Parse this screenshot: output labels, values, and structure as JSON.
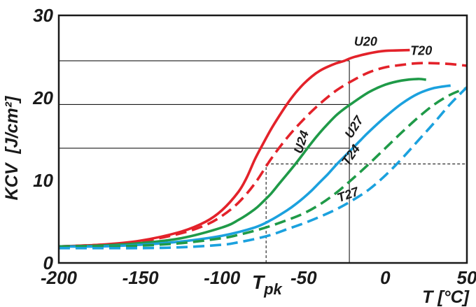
{
  "chart_data": {
    "type": "line",
    "xlabel": "T [°C]",
    "ylabel": "KCV  [J/cm²]",
    "xlim": [
      -200,
      50
    ],
    "ylim": [
      0,
      30
    ],
    "xticks": [
      {
        "value": -200,
        "label": "-200"
      },
      {
        "value": -150,
        "label": "-150"
      },
      {
        "value": -100,
        "label": "-100"
      },
      {
        "value": -50,
        "label": "-50"
      },
      {
        "value": 0,
        "label": "0"
      },
      {
        "value": 50,
        "label": "50"
      }
    ],
    "yticks": [
      {
        "value": 0,
        "label": "0"
      },
      {
        "value": 10,
        "label": "10"
      },
      {
        "value": 20,
        "label": "20"
      },
      {
        "value": 30,
        "label": "30"
      }
    ],
    "grid": false,
    "legend": "none",
    "series": [
      {
        "name": "U20",
        "color": "#e3222a",
        "dash": false,
        "x": [
          -200,
          -175,
          -150,
          -125,
          -110,
          -100,
          -90,
          -85,
          -80,
          -75,
          -70,
          -65,
          -60,
          -55,
          -50,
          -45,
          -40,
          -35,
          -30,
          -25,
          -20,
          -10,
          0,
          15
        ],
        "y": [
          2.0,
          2.2,
          2.7,
          3.8,
          5.0,
          6.4,
          8.6,
          10.3,
          12.5,
          14.4,
          16.2,
          17.8,
          19.3,
          20.6,
          21.7,
          22.6,
          23.3,
          23.8,
          24.2,
          24.5,
          24.9,
          25.4,
          25.7,
          25.8
        ]
      },
      {
        "name": "T20",
        "color": "#e3222a",
        "dash": true,
        "x": [
          -200,
          -175,
          -150,
          -125,
          -110,
          -100,
          -90,
          -80,
          -70,
          -60,
          -50,
          -40,
          -30,
          -20,
          -10,
          0,
          10,
          20,
          30,
          40,
          50
        ],
        "y": [
          2.0,
          2.2,
          2.6,
          3.6,
          4.6,
          5.7,
          7.3,
          9.6,
          12.6,
          15.2,
          17.4,
          19.3,
          20.9,
          22.1,
          23.1,
          23.7,
          24.0,
          24.2,
          24.2,
          24.1,
          23.9
        ]
      },
      {
        "name": "U24",
        "color": "#1f9a48",
        "dash": false,
        "x": [
          -200,
          -175,
          -150,
          -125,
          -100,
          -90,
          -80,
          -75,
          -70,
          -65,
          -60,
          -55,
          -50,
          -45,
          -40,
          -35,
          -30,
          -25,
          -20,
          -10,
          0,
          10,
          20,
          25
        ],
        "y": [
          2.0,
          2.1,
          2.4,
          3.0,
          4.3,
          5.2,
          6.5,
          7.4,
          8.4,
          9.6,
          10.8,
          12.0,
          13.3,
          14.6,
          15.8,
          16.9,
          17.9,
          18.7,
          19.4,
          20.7,
          21.6,
          22.1,
          22.3,
          22.2
        ]
      },
      {
        "name": "U27",
        "color": "#1ba1de",
        "dash": false,
        "x": [
          -200,
          -175,
          -150,
          -125,
          -100,
          -80,
          -70,
          -60,
          -55,
          -50,
          -45,
          -40,
          -35,
          -30,
          -25,
          -20,
          -15,
          -10,
          0,
          10,
          20,
          30,
          40
        ],
        "y": [
          2.0,
          2.0,
          2.2,
          2.6,
          3.3,
          4.3,
          5.2,
          6.4,
          7.1,
          7.9,
          8.8,
          9.8,
          10.8,
          11.9,
          12.9,
          13.9,
          14.9,
          15.9,
          17.7,
          19.3,
          20.5,
          21.2,
          21.5
        ]
      },
      {
        "name": "T24",
        "color": "#1f9a48",
        "dash": true,
        "x": [
          -200,
          -175,
          -150,
          -125,
          -100,
          -90,
          -80,
          -70,
          -60,
          -50,
          -40,
          -30,
          -20,
          -10,
          0,
          10,
          20,
          30,
          40,
          50
        ],
        "y": [
          2.0,
          2.0,
          2.1,
          2.4,
          3.0,
          3.4,
          3.9,
          4.5,
          5.2,
          6.0,
          7.1,
          8.5,
          10.2,
          12.0,
          13.9,
          15.8,
          17.6,
          19.2,
          20.4,
          21.2
        ]
      },
      {
        "name": "T27",
        "color": "#1ba1de",
        "dash": true,
        "x": [
          -200,
          -175,
          -150,
          -125,
          -100,
          -90,
          -80,
          -70,
          -60,
          -50,
          -40,
          -30,
          -20,
          -10,
          0,
          10,
          20,
          30,
          40,
          50
        ],
        "y": [
          1.8,
          1.8,
          1.8,
          1.9,
          2.2,
          2.5,
          2.9,
          3.4,
          4.1,
          4.8,
          5.6,
          6.5,
          7.6,
          8.9,
          10.6,
          12.6,
          14.8,
          17.0,
          19.3,
          21.3
        ]
      }
    ],
    "reference_lines": [
      {
        "type": "h",
        "y": 24.5,
        "x_from": -200,
        "x_to": -22,
        "style": "solid"
      },
      {
        "type": "h",
        "y": 19.2,
        "x_from": -200,
        "x_to": -22,
        "style": "solid"
      },
      {
        "type": "h",
        "y": 13.9,
        "x_from": -200,
        "x_to": -22,
        "style": "solid"
      },
      {
        "type": "v",
        "x": -22,
        "y_from": 0,
        "y_to": 24.5,
        "style": "solid"
      },
      {
        "type": "h",
        "y": 12,
        "x_from": -73,
        "x_to": 50,
        "style": "dashed"
      },
      {
        "type": "v",
        "x": -73,
        "y_from": 0,
        "y_to": 12,
        "style": "dashed"
      }
    ],
    "annotations": [
      {
        "text": "U20",
        "x": -12,
        "y": 26.3,
        "rotate": 0
      },
      {
        "text": "T20",
        "x": 22,
        "y": 25.2,
        "rotate": 0
      },
      {
        "text": "U24",
        "x": -49,
        "y": 14.5,
        "rotate": -72
      },
      {
        "text": "U27",
        "x": -17,
        "y": 16.2,
        "rotate": -58
      },
      {
        "text": "T24",
        "x": -19,
        "y": 12.8,
        "rotate": -55
      },
      {
        "text": "T27",
        "x": -22,
        "y": 7.8,
        "rotate": -20
      }
    ],
    "tpk_label": {
      "main": "T",
      "sub": "pk"
    }
  }
}
